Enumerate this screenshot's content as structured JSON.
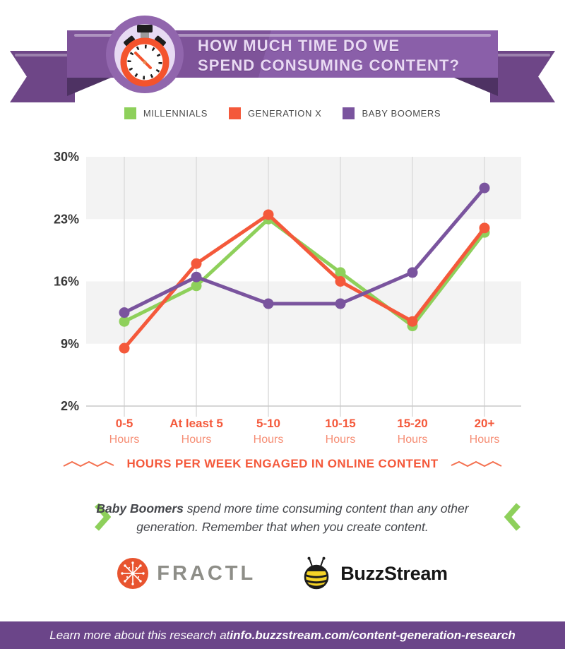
{
  "colors": {
    "banner_purple": "#7e5399",
    "banner_purple_light": "#8a5fa9",
    "ribbon_dark": "#6e4687",
    "fold_dark": "#4e3263",
    "circle_purple": "#9166ad",
    "circle_inner": "#e7daf3",
    "stopwatch_orange": "#f4532d",
    "band_gray": "#f3f3f3",
    "gridline": "#dcdcdc",
    "axis_line": "#c9c9c9",
    "xlabel_orange": "#f4593b",
    "xlabel_sub": "#f68d74",
    "footer_purple": "#6b4589"
  },
  "header": {
    "title_line1": "HOW MUCH TIME DO WE",
    "title_line2": "SPEND CONSUMING CONTENT?",
    "icon": "stopwatch-icon"
  },
  "chart_data": {
    "type": "line",
    "categories": [
      "0-5",
      "At least 5",
      "5-10",
      "10-15",
      "15-20",
      "20+"
    ],
    "category_sub": "Hours",
    "series": [
      {
        "name": "MILLENNIALS",
        "color": "#8ed05b",
        "values": [
          11.5,
          15.5,
          23.0,
          17.0,
          11.0,
          21.5
        ]
      },
      {
        "name": "GENERATION X",
        "color": "#f4593b",
        "values": [
          8.5,
          18.0,
          23.5,
          16.0,
          11.5,
          22.0
        ]
      },
      {
        "name": "BABY BOOMERS",
        "color": "#7a549e",
        "values": [
          12.5,
          16.5,
          13.5,
          13.5,
          17.0,
          26.5
        ]
      }
    ],
    "ylim": [
      2,
      30
    ],
    "yticks": [
      30,
      23,
      16,
      9,
      2
    ],
    "ytick_suffix": "%",
    "bands": [
      [
        23,
        30
      ],
      [
        9,
        16
      ]
    ],
    "grid": "vertical",
    "legend_position": "top",
    "xlabel": "HOURS PER WEEK ENGAGED IN ONLINE CONTENT",
    "title": "HOW MUCH TIME DO WE SPEND CONSUMING CONTENT?"
  },
  "callout": {
    "bold": "Baby Boomers",
    "line1_rest": " spend more time consuming content than any other",
    "line2": "generation. Remember that when you create content."
  },
  "logos": {
    "fractl": "FRACTL",
    "buzzstream": "BuzzStream"
  },
  "footer": {
    "prefix": "Learn more about this research at ",
    "link": "info.buzzstream.com/content-generation-research"
  }
}
